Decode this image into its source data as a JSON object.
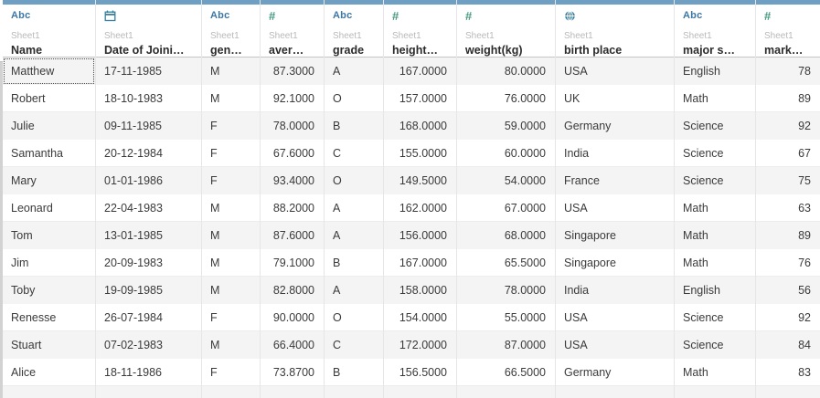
{
  "app": {
    "view": "tableau-data-grid"
  },
  "colors": {
    "column_accent_bar": "#6f9fc2",
    "dimension_blue": "#3e76a2",
    "measure_green": "#459a80",
    "geo_globe_blue": "#37809f",
    "sheet_label_gray": "#b9b9b9",
    "field_text": "#2b2b2b",
    "cell_text": "#3a3a3a",
    "row_band": "#f4f4f4",
    "grid_line": "#e6e6e6"
  },
  "table": {
    "source_sheet": "Sheet1",
    "columns": [
      {
        "field": "Name",
        "source": "Sheet1",
        "icon": "abc-type-icon",
        "datatype": "text",
        "align": "left",
        "width": 102
      },
      {
        "field": "Date of Joini…",
        "source": "Sheet1",
        "icon": "calendar-type-icon",
        "datatype": "date",
        "align": "left",
        "width": 116
      },
      {
        "field": "gen…",
        "source": "Sheet1",
        "icon": "abc-type-icon",
        "datatype": "text",
        "align": "left",
        "width": 64
      },
      {
        "field": "aver…",
        "source": "Sheet1",
        "icon": "number-type-icon",
        "datatype": "number",
        "align": "right",
        "width": 70
      },
      {
        "field": "grade",
        "source": "Sheet1",
        "icon": "abc-type-icon",
        "datatype": "text",
        "align": "left",
        "width": 65
      },
      {
        "field": "height…",
        "source": "Sheet1",
        "icon": "number-type-icon",
        "datatype": "number",
        "align": "right",
        "width": 80
      },
      {
        "field": "weight(kg)",
        "source": "Sheet1",
        "icon": "number-type-icon",
        "datatype": "number",
        "align": "right",
        "width": 108
      },
      {
        "field": "birth place",
        "source": "Sheet1",
        "icon": "globe-type-icon",
        "datatype": "geo",
        "align": "left",
        "width": 130
      },
      {
        "field": "major s…",
        "source": "Sheet1",
        "icon": "abc-type-icon",
        "datatype": "text",
        "align": "left",
        "width": 89
      },
      {
        "field": "mark…",
        "source": "Sheet1",
        "icon": "number-type-icon",
        "datatype": "number",
        "align": "right",
        "width": 70
      }
    ],
    "rows": [
      [
        "Matthew",
        "17-11-1985",
        "M",
        "87.3000",
        "A",
        "167.0000",
        "80.0000",
        "USA",
        "English",
        "78"
      ],
      [
        "Robert",
        "18-10-1983",
        "M",
        "92.1000",
        "O",
        "157.0000",
        "76.0000",
        "UK",
        "Math",
        "89"
      ],
      [
        "Julie",
        "09-11-1985",
        "F",
        "78.0000",
        "B",
        "168.0000",
        "59.0000",
        "Germany",
        "Science",
        "92"
      ],
      [
        "Samantha",
        "20-12-1984",
        "F",
        "67.6000",
        "C",
        "155.0000",
        "60.0000",
        "India",
        "Science",
        "67"
      ],
      [
        "Mary",
        "01-01-1986",
        "F",
        "93.4000",
        "O",
        "149.5000",
        "54.0000",
        "France",
        "Science",
        "75"
      ],
      [
        "Leonard",
        "22-04-1983",
        "M",
        "88.2000",
        "A",
        "162.0000",
        "67.0000",
        "USA",
        "Math",
        "63"
      ],
      [
        "Tom",
        "13-01-1985",
        "M",
        "87.6000",
        "A",
        "156.0000",
        "68.0000",
        "Singapore",
        "Math",
        "89"
      ],
      [
        "Jim",
        "20-09-1983",
        "M",
        "79.1000",
        "B",
        "167.0000",
        "65.5000",
        "Singapore",
        "Math",
        "76"
      ],
      [
        "Toby",
        "19-09-1985",
        "M",
        "82.8000",
        "A",
        "158.0000",
        "78.0000",
        "India",
        "English",
        "56"
      ],
      [
        "Renesse",
        "26-07-1984",
        "F",
        "90.0000",
        "O",
        "154.0000",
        "55.0000",
        "USA",
        "Science",
        "92"
      ],
      [
        "Stuart",
        "07-02-1983",
        "M",
        "66.4000",
        "C",
        "172.0000",
        "87.0000",
        "USA",
        "Science",
        "84"
      ],
      [
        "Alice",
        "18-11-1986",
        "F",
        "73.8700",
        "B",
        "156.5000",
        "66.5000",
        "Germany",
        "Math",
        "83"
      ]
    ],
    "selected_cell": {
      "row": 0,
      "col": 0
    }
  }
}
